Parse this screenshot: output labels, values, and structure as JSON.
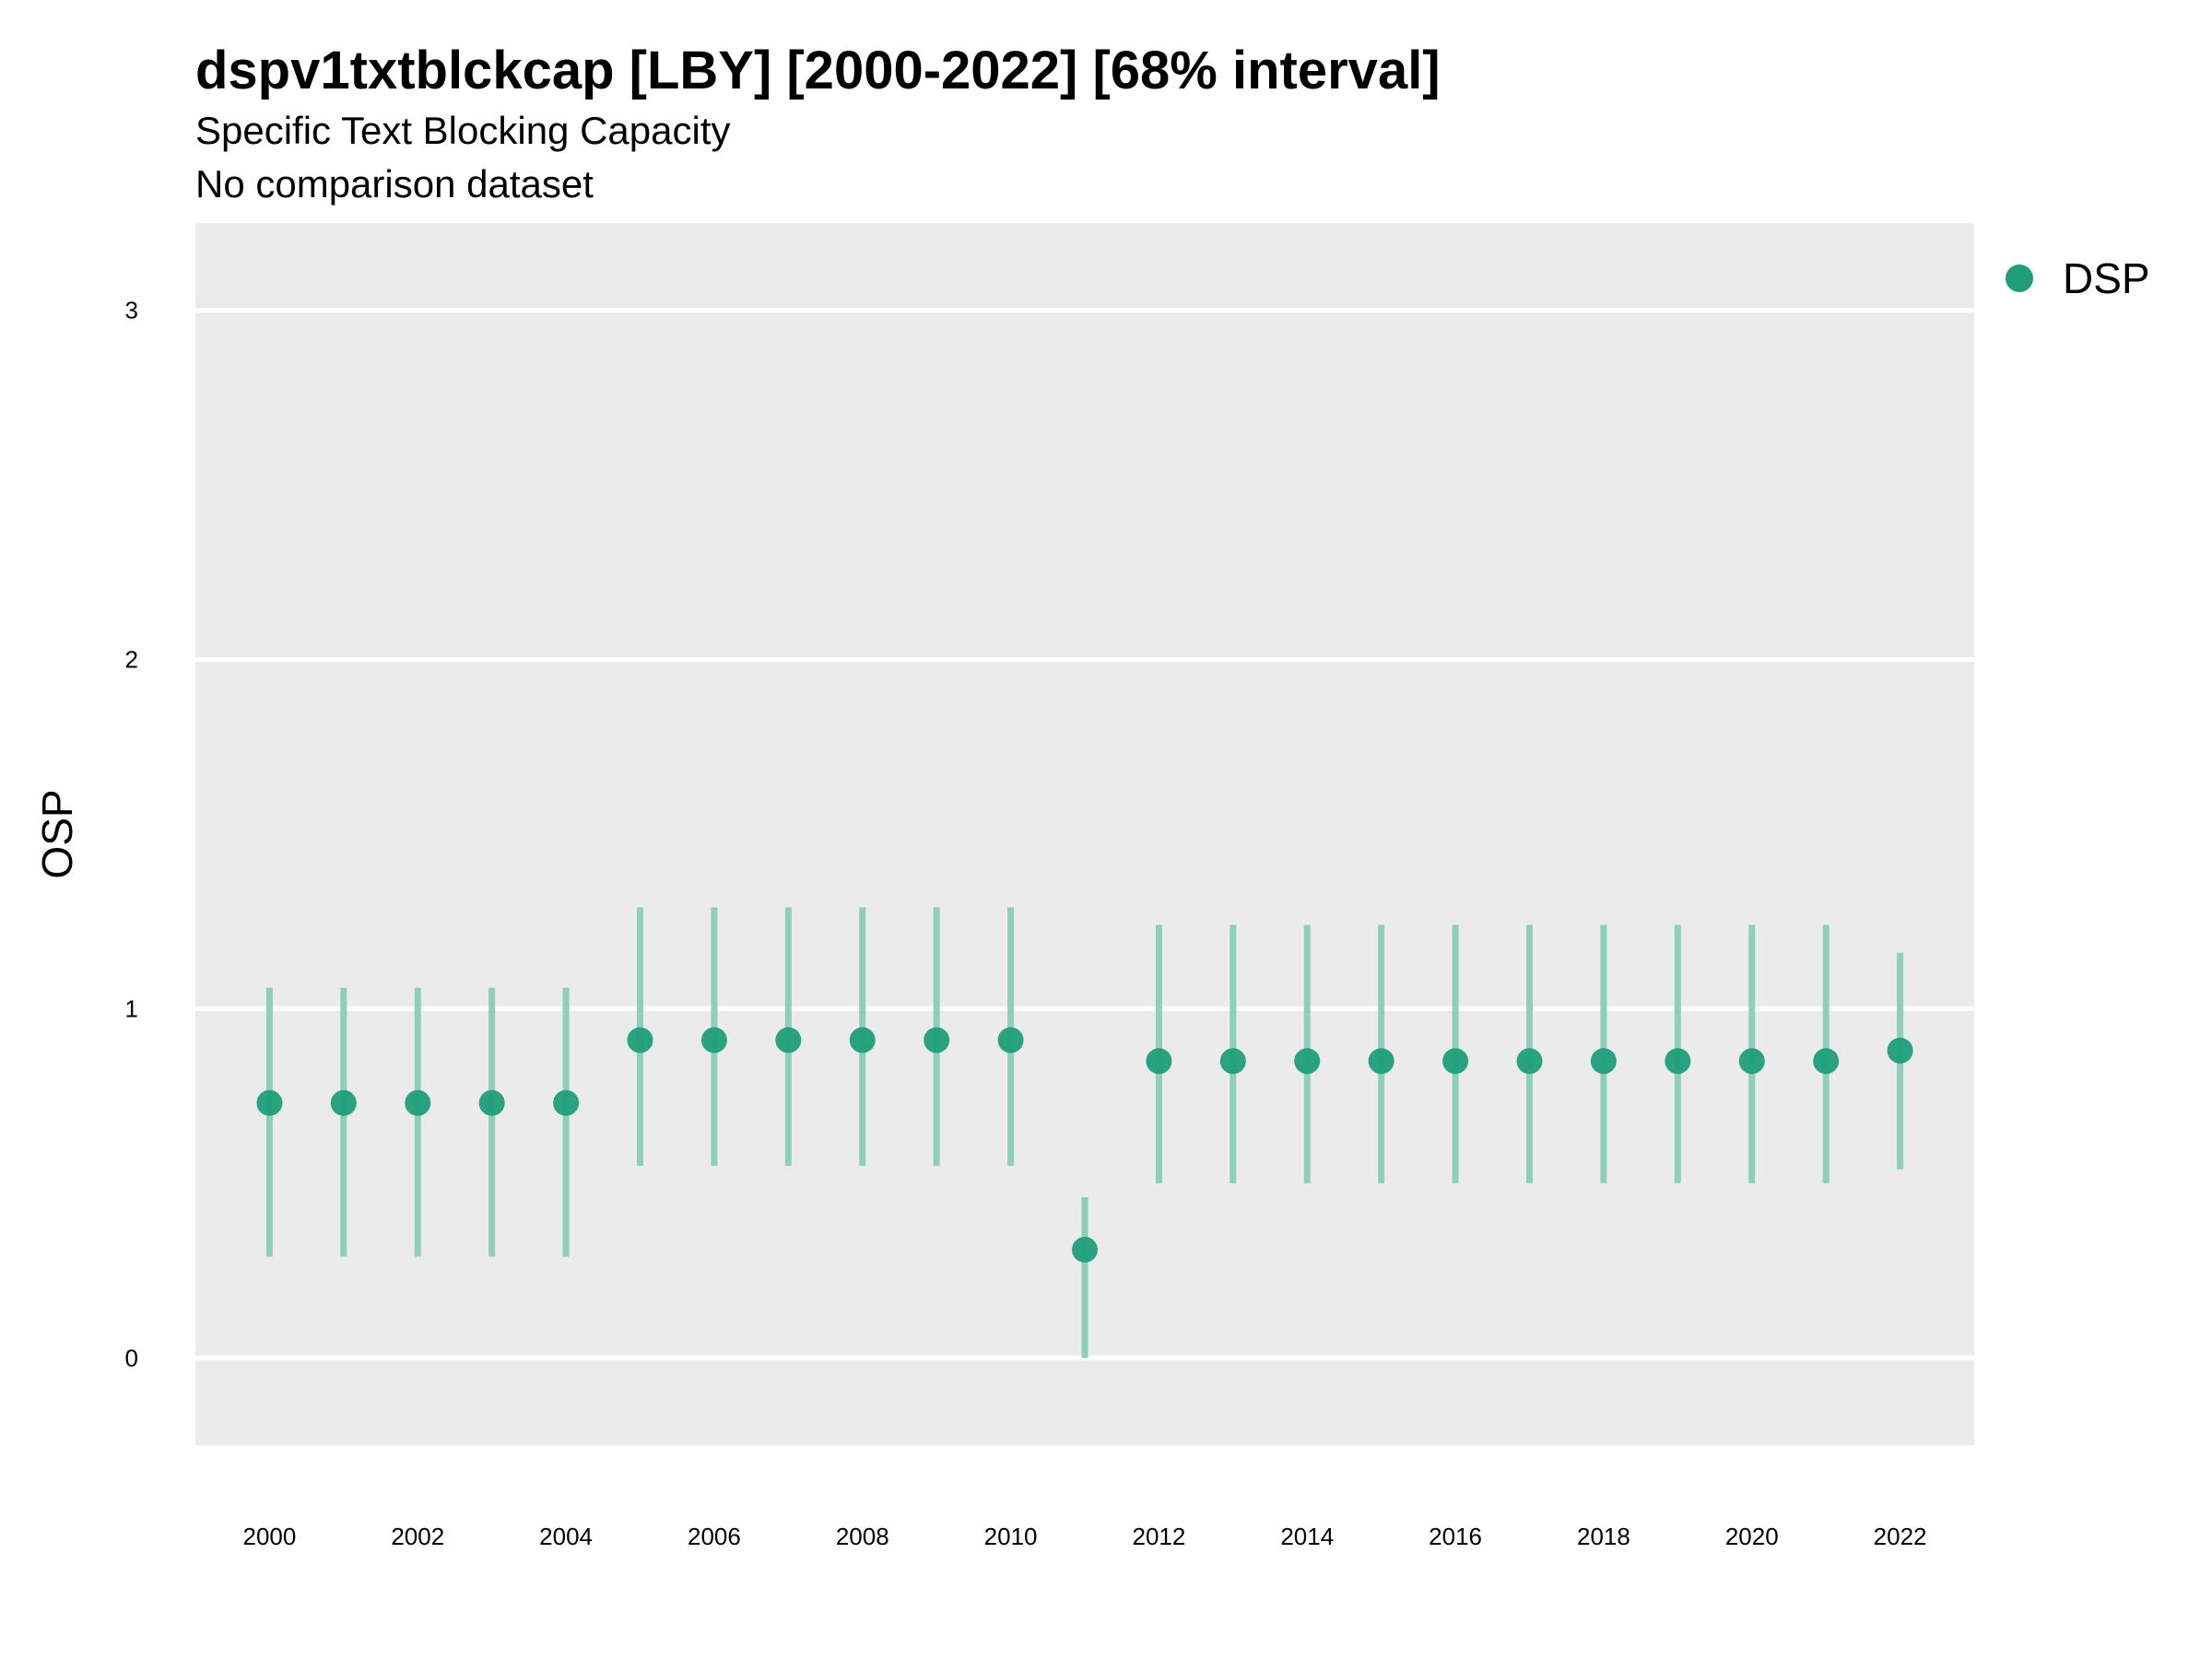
{
  "chart_data": {
    "type": "scatter",
    "title": "dspv1txtblckcap [LBY] [2000-2022] [68% interval]",
    "subtitle": "Specific Text Blocking Capacity",
    "caption_line": "No comparison dataset",
    "xlabel": "",
    "ylabel": "OSP",
    "xlim": [
      1999,
      2023
    ],
    "ylim": [
      -0.25,
      3.25
    ],
    "x_ticks": [
      "2000",
      "2002",
      "2004",
      "2006",
      "2008",
      "2010",
      "2012",
      "2014",
      "2016",
      "2018",
      "2020",
      "2022"
    ],
    "y_ticks": [
      "0",
      "1",
      "2",
      "3"
    ],
    "grid": true,
    "legend": {
      "position": "right-top",
      "entries": [
        "DSP"
      ]
    },
    "colors": {
      "point": "#1f9e7a",
      "interval": "#8ecfb8",
      "panel": "#ebebeb",
      "grid": "#ffffff"
    },
    "series": [
      {
        "name": "DSP",
        "x": [
          2000,
          2001,
          2002,
          2003,
          2004,
          2005,
          2006,
          2007,
          2008,
          2009,
          2010,
          2011,
          2012,
          2013,
          2014,
          2015,
          2016,
          2017,
          2018,
          2019,
          2020,
          2021,
          2022
        ],
        "y": [
          0.73,
          0.73,
          0.73,
          0.73,
          0.73,
          0.91,
          0.91,
          0.91,
          0.91,
          0.91,
          0.91,
          0.31,
          0.85,
          0.85,
          0.85,
          0.85,
          0.85,
          0.85,
          0.85,
          0.85,
          0.85,
          0.85,
          0.88
        ],
        "low": [
          0.29,
          0.29,
          0.29,
          0.29,
          0.29,
          0.55,
          0.55,
          0.55,
          0.55,
          0.55,
          0.55,
          0.0,
          0.5,
          0.5,
          0.5,
          0.5,
          0.5,
          0.5,
          0.5,
          0.5,
          0.5,
          0.5,
          0.54
        ],
        "high": [
          1.06,
          1.06,
          1.06,
          1.06,
          1.06,
          1.29,
          1.29,
          1.29,
          1.29,
          1.29,
          1.29,
          0.46,
          1.24,
          1.24,
          1.24,
          1.24,
          1.24,
          1.24,
          1.24,
          1.24,
          1.24,
          1.24,
          1.16
        ]
      }
    ]
  }
}
